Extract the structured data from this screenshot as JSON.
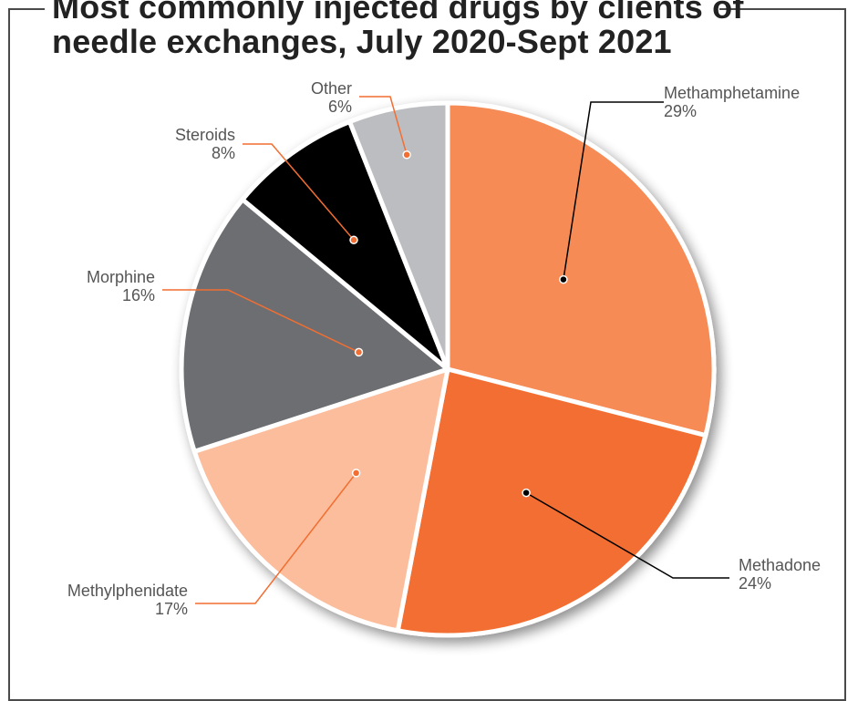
{
  "chart_data": {
    "type": "pie",
    "title_lines": [
      "Most commonly injected drugs by clients of",
      "needle exchanges, July 2020-Sept 2021"
    ],
    "legend": "none",
    "slices": [
      {
        "name": "Methamphetamine",
        "value": 29,
        "value_label": "29%",
        "color": "#F68B57"
      },
      {
        "name": "Methadone",
        "value": 24,
        "value_label": "24%",
        "color": "#F26E32"
      },
      {
        "name": "Methylphenidate",
        "value": 17,
        "value_label": "17%",
        "color": "#FBBD9B"
      },
      {
        "name": "Morphine",
        "value": 16,
        "value_label": "16%",
        "color": "#6D6E71"
      },
      {
        "name": "Steroids",
        "value": 8,
        "value_label": "8%",
        "color": "#000000"
      },
      {
        "name": "Other",
        "value": 6,
        "value_label": "6%",
        "color": "#BCBDC0"
      }
    ],
    "colors": {
      "leader_dark": "#000000",
      "leader_orange": "#F26E32",
      "label_text": "#555555",
      "title_text": "#222222",
      "frame": "#4a4a4a"
    }
  }
}
